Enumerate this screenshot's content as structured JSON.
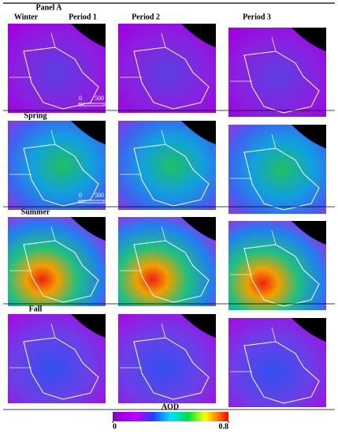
{
  "header": {
    "panel": "Panel A",
    "columns": [
      "Period 1",
      "Period 2",
      "Period 3"
    ]
  },
  "rows": [
    {
      "season": "Winter",
      "scale": {
        "start": "0",
        "distance": "500",
        "unit": "km"
      }
    },
    {
      "season": "Spring",
      "scale": {
        "start": "0",
        "distance": "500",
        "unit": "km"
      }
    },
    {
      "season": "Summer"
    },
    {
      "season": "Fall"
    }
  ],
  "colorbar": {
    "label": "AOD",
    "ticks": [
      0,
      0.8
    ]
  }
}
